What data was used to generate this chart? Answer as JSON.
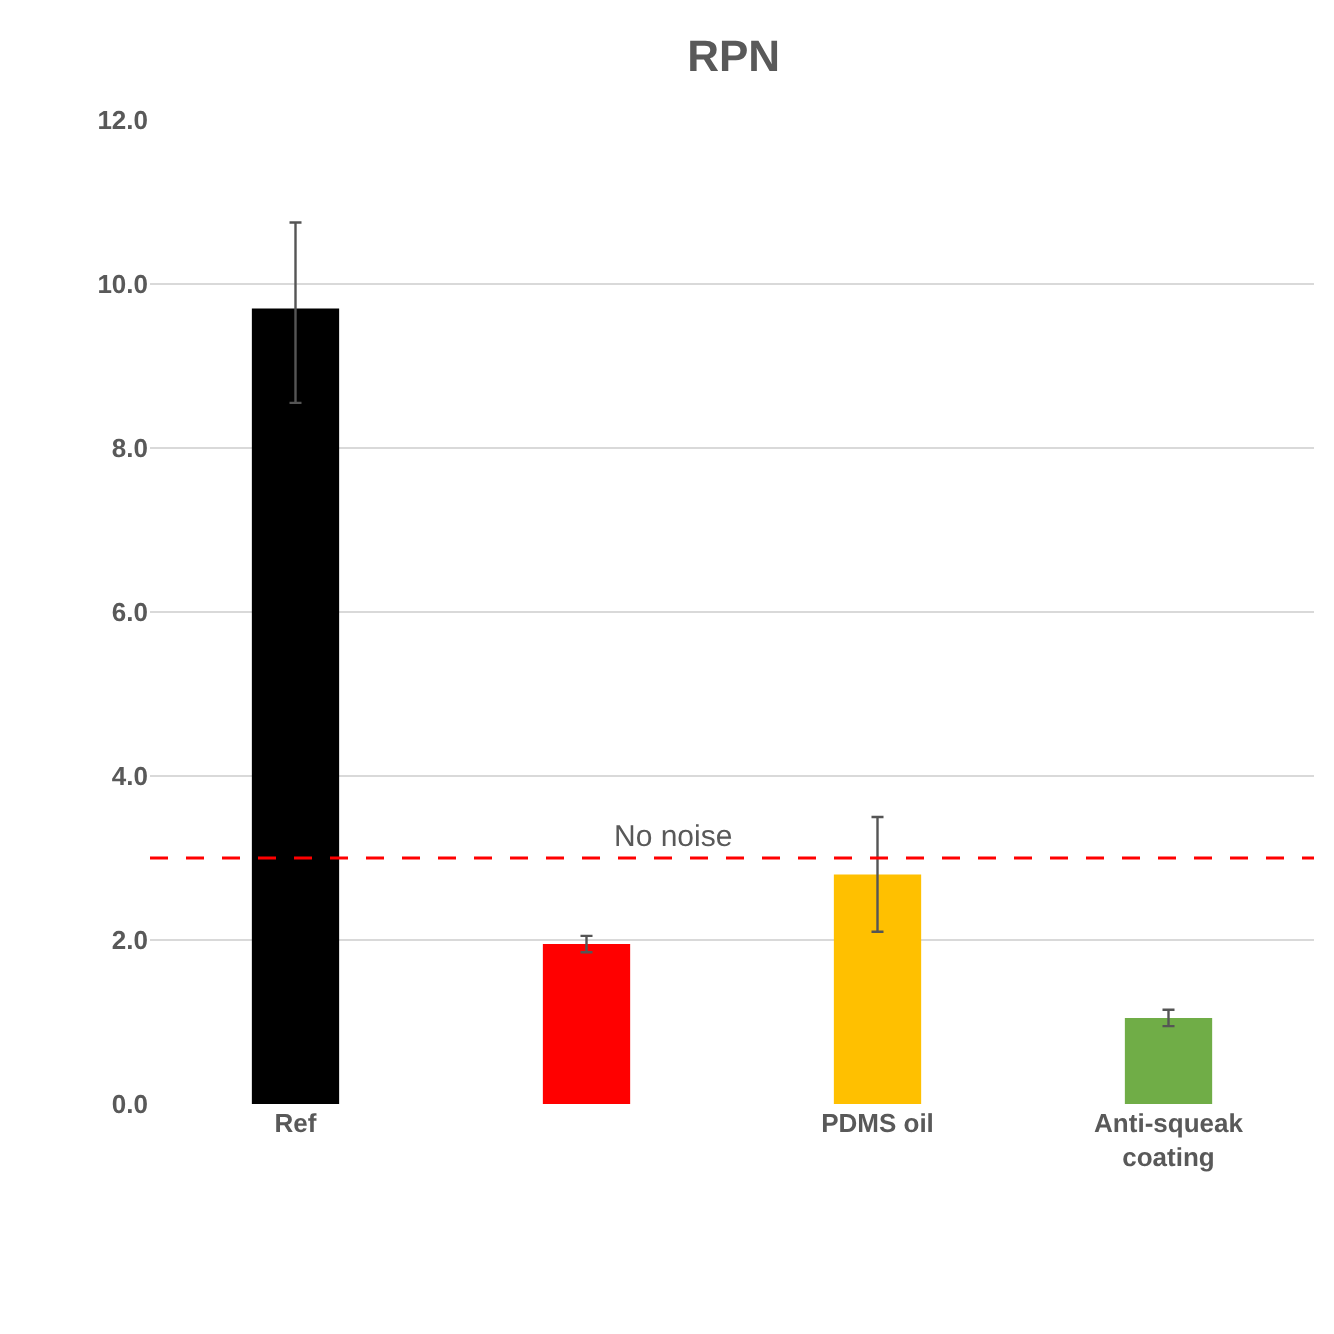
{
  "chart_data": {
    "type": "bar",
    "title": "RPN",
    "categories": [
      "Ref",
      null,
      "PDMS oil",
      "Anti-squeak coating"
    ],
    "values": [
      9.7,
      1.95,
      2.8,
      1.05
    ],
    "colors": [
      "#000000",
      "#ff0000",
      "#ffc000",
      "#70ad47"
    ],
    "errors": [
      [
        8.55,
        10.75
      ],
      [
        1.85,
        2.05
      ],
      [
        2.1,
        3.5
      ],
      [
        0.95,
        1.15
      ]
    ],
    "ylim": [
      0,
      12
    ],
    "yticks": [
      {
        "value": 0,
        "label": "0.0"
      },
      {
        "value": 2,
        "label": "2.0"
      },
      {
        "value": 4,
        "label": "4.0"
      },
      {
        "value": 6,
        "label": "6.0"
      },
      {
        "value": 8,
        "label": "8.0"
      },
      {
        "value": 10,
        "label": "10.0"
      },
      {
        "value": 12,
        "label": "12.0"
      }
    ],
    "grid": "y",
    "ref_lines": [
      {
        "axis": "y",
        "value": 3,
        "label": "No noise",
        "color": "#ff0000",
        "line_style": "dashed"
      }
    ]
  }
}
